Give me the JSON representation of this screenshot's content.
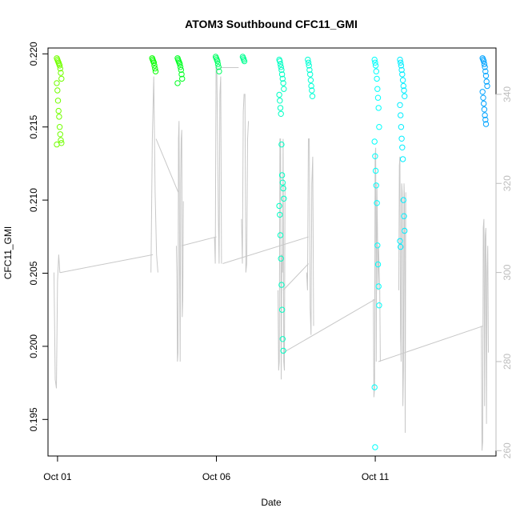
{
  "chart_data": {
    "type": "scatter",
    "title": "ATOM3 Southbound CFC11_GMI",
    "xlabel": "Date",
    "ylabel": "CFC11_GMI",
    "x_tick_labels": [
      "Oct 01",
      "Oct 06",
      "Oct 11"
    ],
    "x_ticks_day": [
      1,
      6,
      11
    ],
    "xlim_day": [
      0.7,
      14.8
    ],
    "ylim": [
      0.1925,
      0.2204
    ],
    "y_ticks": [
      0.195,
      0.2,
      0.205,
      0.21,
      0.215,
      0.22
    ],
    "y_tick_labels": [
      "0.195",
      "0.200",
      "0.205",
      "0.210",
      "0.215",
      "0.220"
    ],
    "y2_ticks": [
      260,
      280,
      300,
      320,
      340
    ],
    "y2lim": [
      258.8,
      350.4
    ],
    "y2_color": "#bdbdbd",
    "grid": false,
    "series": [
      {
        "role": "CFC11_GMI points",
        "marker": "open-circle",
        "color_gradient": [
          "#7fff00",
          "#00ff00",
          "#00ffbf",
          "#00ffff",
          "#0099ff"
        ],
        "clusters": [
          {
            "day": 1.05,
            "values": [
              0.2197,
              0.2196,
              0.2195,
              0.2194,
              0.2193,
              0.2192,
              0.219,
              0.2187,
              0.2183,
              0.218,
              0.2175,
              0.2168,
              0.2161,
              0.2157,
              0.215,
              0.2145,
              0.2141,
              0.2139,
              0.2138
            ]
          },
          {
            "day": 4.05,
            "values": [
              0.2197,
              0.2196,
              0.2195,
              0.2194,
              0.2192,
              0.219,
              0.2188
            ]
          },
          {
            "day": 4.85,
            "values": [
              0.2197,
              0.2196,
              0.2195,
              0.2194,
              0.2193,
              0.2191,
              0.2189,
              0.2186,
              0.2183,
              0.218
            ]
          },
          {
            "day": 6.05,
            "values": [
              0.2198,
              0.2197,
              0.2196,
              0.2195,
              0.2193,
              0.2191,
              0.2188
            ]
          },
          {
            "day": 6.9,
            "values": [
              0.2198,
              0.2197,
              0.2196,
              0.2195
            ]
          },
          {
            "day": 8.05,
            "values": [
              0.2196,
              0.2195,
              0.2193,
              0.2191,
              0.2189,
              0.2186,
              0.2183,
              0.218,
              0.2176,
              0.2172,
              0.2168,
              0.2163,
              0.2159,
              0.2138,
              0.2117,
              0.2112,
              0.2108,
              0.2101,
              0.2096,
              0.209,
              0.2076,
              0.206,
              0.2042,
              0.2025,
              0.2005,
              0.1997
            ]
          },
          {
            "day": 8.95,
            "values": [
              0.2196,
              0.2194,
              0.2192,
              0.2189,
              0.2186,
              0.2182,
              0.2178,
              0.2175,
              0.2171
            ]
          },
          {
            "day": 11.05,
            "values": [
              0.2196,
              0.2194,
              0.2192,
              0.2188,
              0.2183,
              0.2176,
              0.217,
              0.2163,
              0.215,
              0.214,
              0.213,
              0.212,
              0.211,
              0.2098,
              0.2069,
              0.2056,
              0.2041,
              0.2028,
              0.1972,
              0.1931
            ]
          },
          {
            "day": 11.85,
            "values": [
              0.2196,
              0.2194,
              0.2192,
              0.2189,
              0.2186,
              0.2182,
              0.2178,
              0.2175,
              0.2171,
              0.2165,
              0.2158,
              0.215,
              0.2142,
              0.2136,
              0.2128,
              0.21,
              0.2089,
              0.2079,
              0.2072,
              0.2068
            ]
          },
          {
            "day": 14.45,
            "values": [
              0.2197,
              0.2196,
              0.2195,
              0.2193,
              0.2191,
              0.2188,
              0.2185,
              0.2181,
              0.2178,
              0.2174,
              0.217,
              0.2166,
              0.2162,
              0.2158,
              0.2155,
              0.2152
            ]
          }
        ]
      },
      {
        "role": "flight track (right axis)",
        "color": "#c8c8c8",
        "line": true,
        "segments": [
          {
            "day": 1.0,
            "values": [
              300,
              276,
              274,
              298,
              304,
              300,
              300
            ]
          },
          {
            "day": 4.05,
            "values": [
              300,
              330,
              344,
              318,
              304,
              300
            ]
          },
          {
            "day": 4.85,
            "values": [
              306,
              300,
              280,
              282,
              330,
              334,
              300,
              280,
              320,
              330,
              332,
              290,
              294,
              316
            ]
          },
          {
            "day": 6.05,
            "values": [
              308,
              302,
              346,
              346,
              330,
              312,
              302,
              340,
              344,
              302
            ]
          },
          {
            "day": 6.9,
            "values": [
              312,
              302,
              336,
              340,
              340,
              300,
              302,
              330,
              334
            ]
          },
          {
            "day": 8.05,
            "values": [
              296,
              278,
              280,
              330,
              330,
              276,
              304,
              300,
              330,
              280,
              278,
              320
            ]
          },
          {
            "day": 8.95,
            "values": [
              300,
              296,
              330,
              330,
              292,
              286,
              320,
              326,
              288
            ]
          },
          {
            "day": 11.05,
            "values": [
              294,
              272,
              274,
              326,
              328,
              280,
              320,
              310,
              296,
              306,
              300,
              296,
              280
            ]
          },
          {
            "day": 11.85,
            "values": [
              296,
              324,
              326,
              286,
              280,
              320,
              318,
              270,
              278,
              320,
              316,
              264,
              318
            ]
          },
          {
            "day": 14.45,
            "values": [
              288,
              260,
              262,
              310,
              312,
              270,
              308,
              310,
              266,
              300,
              306,
              282
            ]
          }
        ],
        "connectors": [
          [
            1.1,
            300,
            4.0,
            304
          ],
          [
            4.1,
            330,
            4.8,
            318
          ],
          [
            4.9,
            306,
            6.0,
            308
          ],
          [
            6.1,
            346,
            6.7,
            346
          ],
          [
            6.2,
            302,
            8.9,
            308
          ],
          [
            8.1,
            296,
            8.9,
            302
          ],
          [
            8.1,
            282,
            11.0,
            294
          ],
          [
            11.1,
            280,
            14.4,
            288
          ]
        ]
      }
    ]
  }
}
